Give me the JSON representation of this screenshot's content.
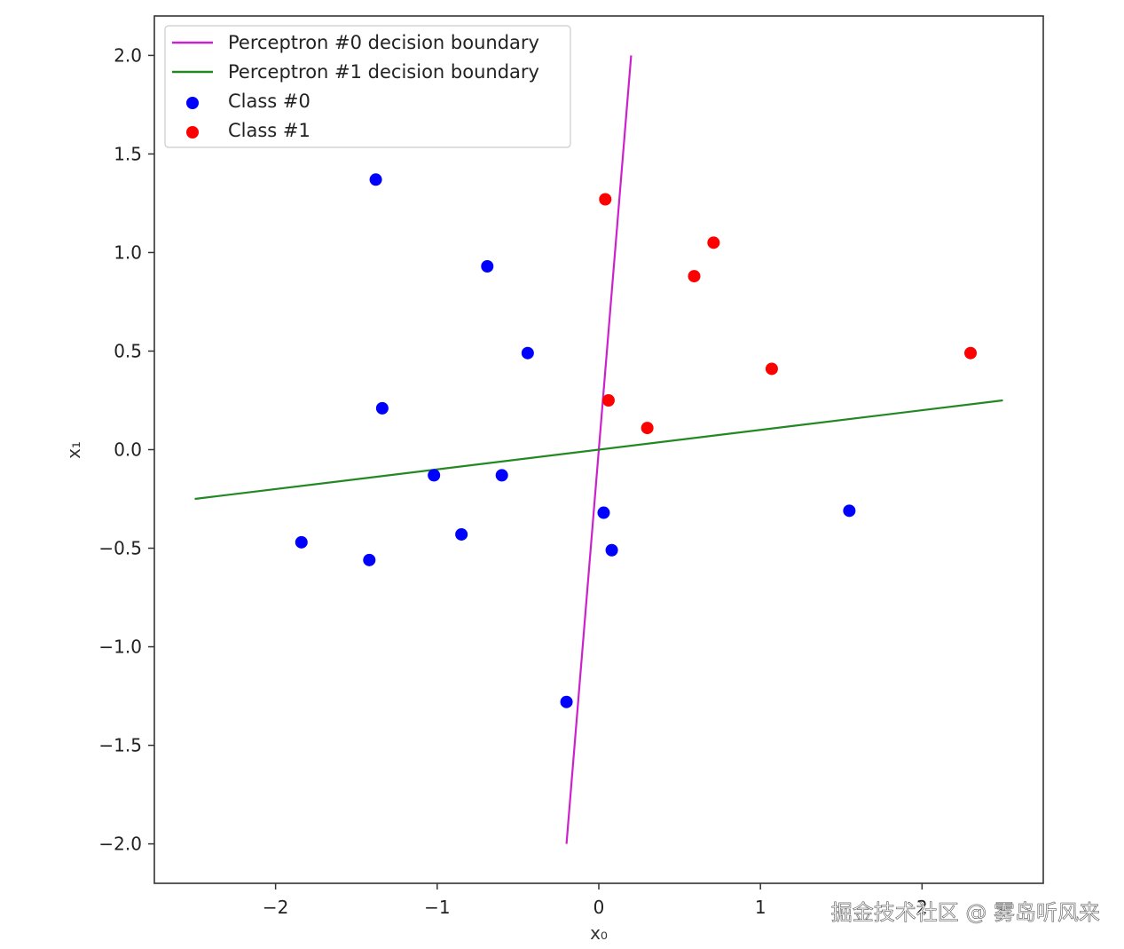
{
  "chart_data": {
    "type": "scatter",
    "title": "",
    "xlabel": "x₀",
    "ylabel": "x₁",
    "xlim": [
      -2.75,
      2.75
    ],
    "ylim": [
      -2.2,
      2.2
    ],
    "xticks": [
      -2,
      -1,
      0,
      1,
      2
    ],
    "yticks": [
      2.0,
      1.5,
      1.0,
      0.5,
      0.0,
      -0.5,
      -1.0,
      -1.5,
      -2.0
    ],
    "xtick_labels": [
      "−2",
      "−1",
      "0",
      "1",
      "2"
    ],
    "ytick_labels": [
      "2.0",
      "1.5",
      "1.0",
      "0.5",
      "0.0",
      "−0.5",
      "−1.0",
      "−1.5",
      "−2.0"
    ],
    "grid": false,
    "legend_position": "top-left",
    "lines": [
      {
        "name": "Perceptron #0 decision boundary",
        "color": "#cc22cc",
        "x": [
          -0.2,
          0.2
        ],
        "y": [
          -2.0,
          2.0
        ]
      },
      {
        "name": "Perceptron #1 decision boundary",
        "color": "#228822",
        "x": [
          -2.5,
          2.5
        ],
        "y": [
          -0.25,
          0.25
        ]
      }
    ],
    "series": [
      {
        "name": "Class #0",
        "color": "#0000ff",
        "points": [
          [
            -1.38,
            1.37
          ],
          [
            -0.69,
            0.93
          ],
          [
            -0.44,
            0.49
          ],
          [
            -1.34,
            0.21
          ],
          [
            -1.02,
            -0.13
          ],
          [
            -0.6,
            -0.13
          ],
          [
            -1.84,
            -0.47
          ],
          [
            -1.42,
            -0.56
          ],
          [
            -0.85,
            -0.43
          ],
          [
            0.03,
            -0.32
          ],
          [
            0.08,
            -0.51
          ],
          [
            -0.2,
            -1.28
          ],
          [
            1.55,
            -0.31
          ]
        ]
      },
      {
        "name": "Class #1",
        "color": "#ff0000",
        "points": [
          [
            0.04,
            1.27
          ],
          [
            0.71,
            1.05
          ],
          [
            0.59,
            0.88
          ],
          [
            1.07,
            0.41
          ],
          [
            2.3,
            0.49
          ],
          [
            0.06,
            0.25
          ],
          [
            0.3,
            0.11
          ]
        ]
      }
    ]
  },
  "watermark": "掘金技术社区 @ 雾岛听风来"
}
